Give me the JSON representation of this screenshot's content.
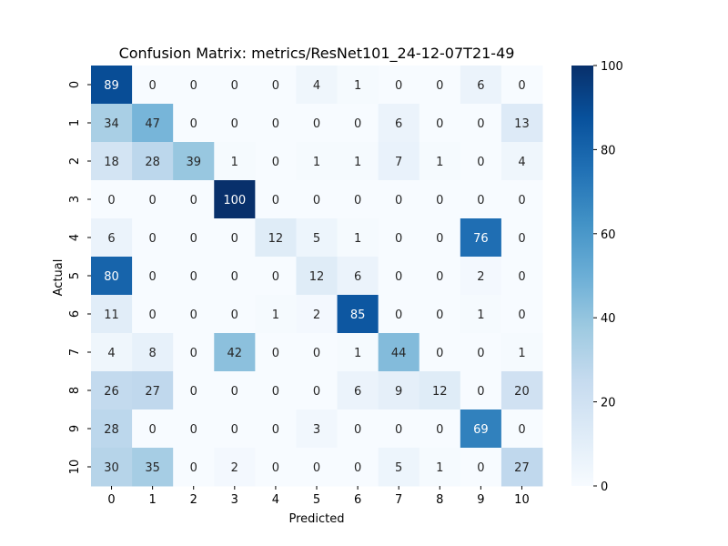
{
  "chart_data": {
    "type": "heatmap",
    "title": "Confusion Matrix: metrics/ResNet101_24-12-07T21-49",
    "xlabel": "Predicted",
    "ylabel": "Actual",
    "x_categories": [
      "0",
      "1",
      "2",
      "3",
      "4",
      "5",
      "6",
      "7",
      "8",
      "9",
      "10"
    ],
    "y_categories": [
      "0",
      "1",
      "2",
      "3",
      "4",
      "5",
      "6",
      "7",
      "8",
      "9",
      "10"
    ],
    "values": [
      [
        89,
        0,
        0,
        0,
        0,
        4,
        1,
        0,
        0,
        6,
        0
      ],
      [
        34,
        47,
        0,
        0,
        0,
        0,
        0,
        6,
        0,
        0,
        13
      ],
      [
        18,
        28,
        39,
        1,
        0,
        1,
        1,
        7,
        1,
        0,
        4
      ],
      [
        0,
        0,
        0,
        100,
        0,
        0,
        0,
        0,
        0,
        0,
        0
      ],
      [
        6,
        0,
        0,
        0,
        12,
        5,
        1,
        0,
        0,
        76,
        0
      ],
      [
        80,
        0,
        0,
        0,
        0,
        12,
        6,
        0,
        0,
        2,
        0
      ],
      [
        11,
        0,
        0,
        0,
        1,
        2,
        85,
        0,
        0,
        1,
        0
      ],
      [
        4,
        8,
        0,
        42,
        0,
        0,
        1,
        44,
        0,
        0,
        1
      ],
      [
        26,
        27,
        0,
        0,
        0,
        0,
        6,
        9,
        12,
        0,
        20
      ],
      [
        28,
        0,
        0,
        0,
        0,
        3,
        0,
        0,
        0,
        69,
        0
      ],
      [
        30,
        35,
        0,
        2,
        0,
        0,
        0,
        5,
        1,
        0,
        27
      ]
    ],
    "colormap": "Blues",
    "color_range": [
      0,
      100
    ],
    "colorbar_ticks": [
      0,
      20,
      40,
      60,
      80,
      100
    ],
    "annotate": true,
    "grid": false
  }
}
